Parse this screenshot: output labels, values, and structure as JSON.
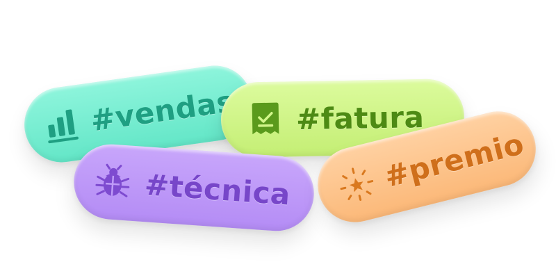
{
  "tags": {
    "vendas": {
      "label": "#vendas",
      "icon": "bar-chart-icon",
      "color": "#1f9f82",
      "background": "#7eefd4"
    },
    "fatura": {
      "label": "#fatura",
      "icon": "receipt-icon",
      "color": "#4d8a14",
      "background": "#d2f68a"
    },
    "tecnica": {
      "label": "#técnica",
      "icon": "bug-icon",
      "color": "#7746c9",
      "background": "#bf9bf8"
    },
    "premio": {
      "label": "#premio",
      "icon": "star-burst-icon",
      "color": "#cf6f1b",
      "background": "#fdc58e"
    }
  }
}
